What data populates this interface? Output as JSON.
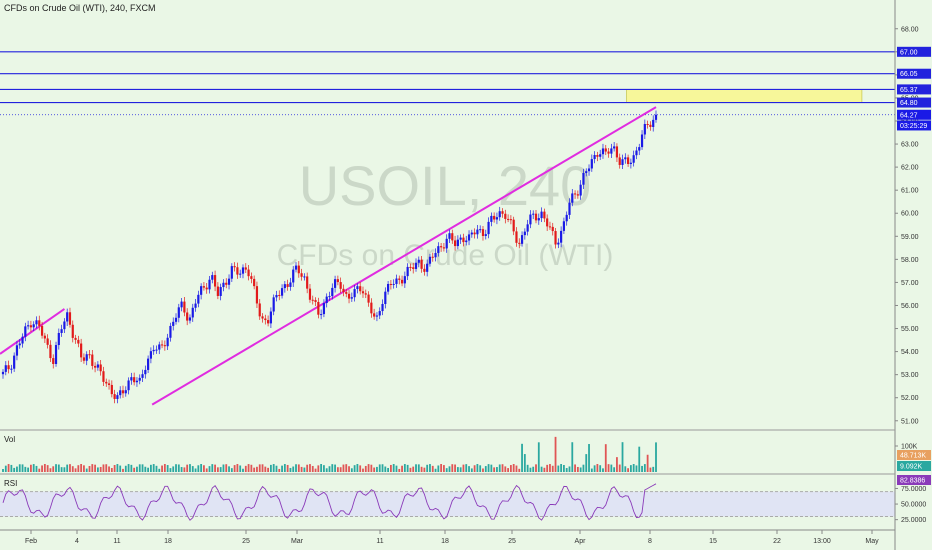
{
  "header": {
    "title": "CFDs on Crude Oil (WTI), 240, FXCM"
  },
  "watermark": {
    "symbol": "USOIL, 240",
    "description": "CFDs on Crude Oil (WTI)"
  },
  "panels": {
    "volume_label": "Vol",
    "rsi_label": "RSI"
  },
  "colors": {
    "up": "#1a1ae6",
    "down": "#e21a1a",
    "hline": "#2222dd",
    "trendline": "#e02ce0",
    "zone": "#f7f79a",
    "vol_up": "#2aa8a0",
    "vol_down": "#e05555",
    "rsi": "#8a3ab9"
  },
  "chart_data": {
    "type": "candlestick",
    "price_axis": {
      "ticks": [
        51.0,
        52.0,
        53.0,
        54.0,
        55.0,
        56.0,
        57.0,
        58.0,
        59.0,
        60.0,
        61.0,
        62.0,
        63.0,
        64.0,
        65.0,
        66.0,
        67.0,
        68.0
      ],
      "labels": [
        "51.00",
        "52.00",
        "53.00",
        "54.00",
        "55.00",
        "56.00",
        "57.00",
        "58.00",
        "59.00",
        "60.00",
        "61.00",
        "62.00",
        "63.00",
        "64.00",
        "65.00",
        "66.00",
        "67.00",
        "68.00"
      ],
      "ylim": [
        50.6,
        68.9
      ]
    },
    "time_axis": {
      "labels": [
        "Feb",
        "4",
        "11",
        "18",
        "25",
        "Mar",
        "11",
        "18",
        "25",
        "Apr",
        "8",
        "15",
        "22",
        "13:00",
        "May"
      ]
    },
    "close_path": [
      53.0,
      53.4,
      54.2,
      54.8,
      55.4,
      55.1,
      54.3,
      53.7,
      54.9,
      55.6,
      54.6,
      53.6,
      53.9,
      53.3,
      52.8,
      52.4,
      51.9,
      52.4,
      53.0,
      52.5,
      53.6,
      54.2,
      54.0,
      54.8,
      55.5,
      56.0,
      55.4,
      56.3,
      56.8,
      57.3,
      56.4,
      57.1,
      57.6,
      57.3,
      57.8,
      56.6,
      55.3,
      55.5,
      56.3,
      56.8,
      57.1,
      57.6,
      57.2,
      56.2,
      55.6,
      56.3,
      56.8,
      57.0,
      56.3,
      56.5,
      56.9,
      56.0,
      55.2,
      56.5,
      56.9,
      57.0,
      57.4,
      57.6,
      57.9,
      57.6,
      58.2,
      58.6,
      58.9,
      58.7,
      59.0,
      58.8,
      59.4,
      59.1,
      59.6,
      60.1,
      59.9,
      59.3,
      58.7,
      59.5,
      59.9,
      60.0,
      59.4,
      58.8,
      59.3,
      60.5,
      61.0,
      61.6,
      62.2,
      62.8,
      62.5,
      62.9,
      62.3,
      62.1,
      62.5,
      63.4,
      63.8,
      64.27
    ],
    "markers": [
      {
        "label": "64.27",
        "value": 64.27,
        "color": "#1a1ae6"
      },
      {
        "label": "03:25:29",
        "value": 63.85,
        "color": "#1a1ae6"
      }
    ],
    "horizontal_levels": [
      {
        "label": "67.00",
        "value": 67.0,
        "color": "#2222dd"
      },
      {
        "label": "66.05",
        "value": 66.05,
        "color": "#2222dd"
      },
      {
        "label": "65.37",
        "value": 65.37,
        "color": "#2222dd"
      },
      {
        "label": "64.80",
        "value": 64.8,
        "color": "#2222dd"
      }
    ],
    "dotted_level": 64.27,
    "resistance_zone": {
      "low": 64.8,
      "high": 65.37,
      "start": 0.7,
      "end": 0.963
    },
    "trendlines": [
      {
        "from": [
          0.0,
          53.9
        ],
        "to": [
          0.072,
          55.85
        ]
      },
      {
        "from": [
          0.17,
          51.7
        ],
        "to": [
          0.733,
          64.6
        ]
      }
    ],
    "volume": {
      "axis_label": "100K",
      "markers": [
        {
          "label": "48.713K",
          "color": "#e8a060"
        },
        {
          "label": "9.092K",
          "color": "#2aa8a0"
        }
      ]
    },
    "rsi": {
      "axis_labels": [
        "75.0000",
        "50.0000",
        "25.0000"
      ],
      "axis_values": [
        75,
        50,
        25
      ],
      "marker": {
        "label": "82.8386",
        "value": 82.8386,
        "color": "#8a3ab9"
      },
      "band": [
        30,
        70
      ]
    }
  }
}
